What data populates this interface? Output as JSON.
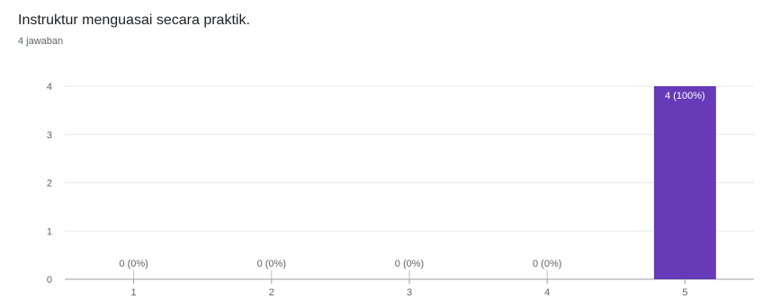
{
  "header": {
    "title": "Instruktur menguasai secara praktik.",
    "response_count": "4 jawaban"
  },
  "colors": {
    "bar": "#673ab7",
    "grid": "#e8e8e8",
    "axis": "#9e9e9e",
    "text": "#5f6368"
  },
  "chart_data": {
    "type": "bar",
    "title": "",
    "xlabel": "",
    "ylabel": "",
    "categories": [
      "1",
      "2",
      "3",
      "4",
      "5"
    ],
    "values": [
      0,
      0,
      0,
      0,
      4
    ],
    "labels": [
      "0 (0%)",
      "0 (0%)",
      "0 (0%)",
      "0 (0%)",
      "4 (100%)"
    ],
    "ylim": [
      0,
      4
    ],
    "yticks": [
      0,
      1,
      2,
      3,
      4
    ],
    "grid": true,
    "legend": "none"
  }
}
